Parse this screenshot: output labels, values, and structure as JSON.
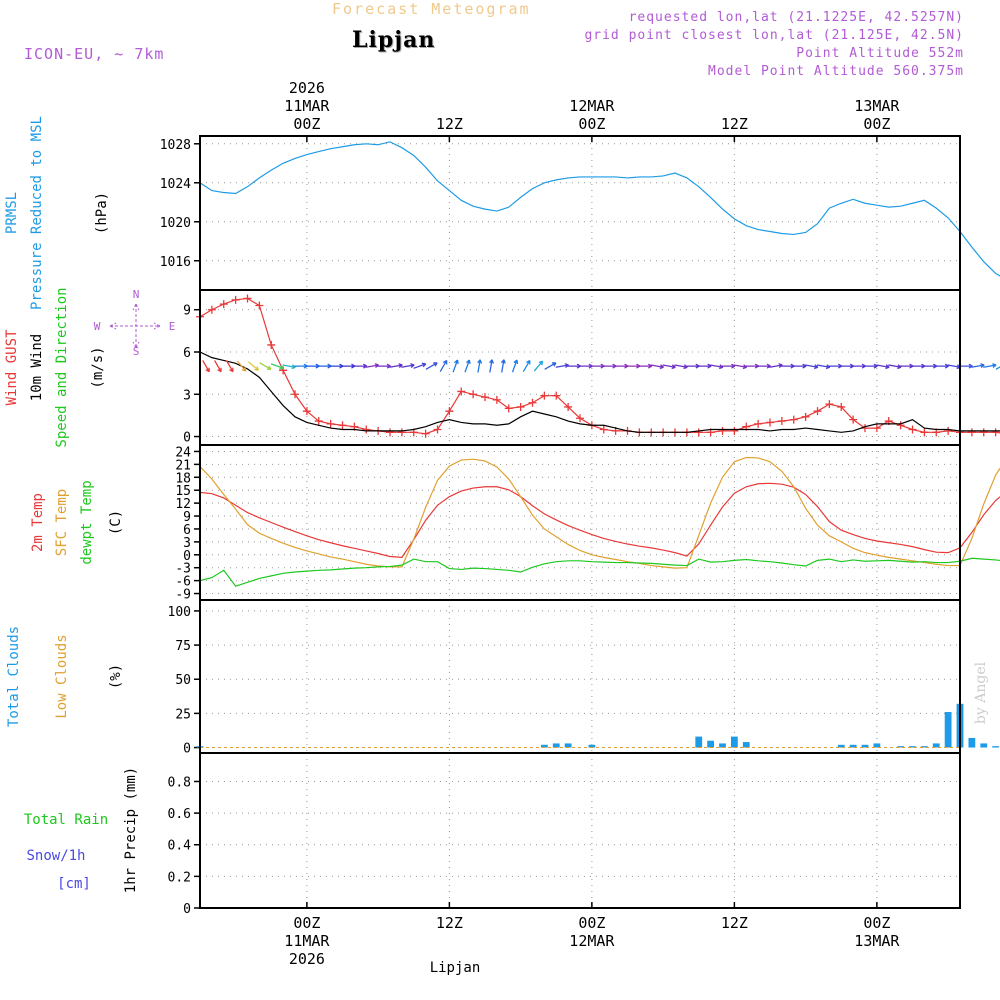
{
  "header": {
    "title": "Forecast Meteogram",
    "station": "Lipjan",
    "model": "ICON-EU, ~ 7km",
    "requested": "requested lon,lat (21.1225E, 42.5257N)",
    "grid_point": "grid point closest lon,lat (21.125E, 42.5N)",
    "point_altitude": "Point Altitude 552m",
    "model_altitude": "Model Point Altitude 560.375m"
  },
  "footer": {
    "station": "Lipjan",
    "watermark": "by Angel"
  },
  "colors": {
    "pressure": "#1e9be6",
    "gust": "#e83838",
    "wind": "#000000",
    "dir_label": "#1ec81e",
    "compass": "#b25bd6",
    "t2m": "#e83838",
    "sfc": "#e0a030",
    "dewpt": "#1ec81e",
    "clouds": "#1e9be6",
    "low_clouds": "#e0a030",
    "rain": "#1ec81e",
    "snow": "#4a4ae0",
    "grid": "#999999"
  },
  "chart_data": {
    "type": "line",
    "time_axis": {
      "hours_start": -9,
      "hours_end": 55,
      "step_hours": 1,
      "top_ticks": [
        {
          "hour": 0,
          "lines": [
            "2026",
            "11MAR",
            "00Z"
          ]
        },
        {
          "hour": 12,
          "lines": [
            "12Z"
          ]
        },
        {
          "hour": 24,
          "lines": [
            "12MAR",
            "00Z"
          ]
        },
        {
          "hour": 36,
          "lines": [
            "12Z"
          ]
        },
        {
          "hour": 48,
          "lines": [
            "13MAR",
            "00Z"
          ]
        },
        {
          "hour": 60,
          "lines": [
            "12Z"
          ]
        }
      ],
      "bottom_ticks": [
        {
          "hour": 0,
          "lines": [
            "00Z",
            "11MAR",
            "2026"
          ]
        },
        {
          "hour": 12,
          "lines": [
            "12Z"
          ]
        },
        {
          "hour": 24,
          "lines": [
            "00Z",
            "12MAR"
          ]
        },
        {
          "hour": 36,
          "lines": [
            "12Z"
          ]
        },
        {
          "hour": 48,
          "lines": [
            "00Z",
            "13MAR"
          ]
        },
        {
          "hour": 60,
          "lines": [
            "12Z"
          ]
        }
      ]
    },
    "panels": [
      {
        "id": "pressure",
        "title_lines": [
          {
            "text": "PRMSL",
            "color": "#1e9be6"
          },
          {
            "text": "Pressure Reduced to MSL",
            "color": "#1e9be6"
          }
        ],
        "unit": "(hPa)",
        "ylim": [
          1013,
          1028.8
        ],
        "yticks": [
          1016,
          1020,
          1024,
          1028
        ],
        "series": [
          {
            "name": "PRMSL",
            "color": "#1e9be6",
            "values": [
              1024.0,
              1023.2,
              1023.0,
              1022.9,
              1023.6,
              1024.5,
              1025.3,
              1026.0,
              1026.5,
              1026.9,
              1027.2,
              1027.5,
              1027.7,
              1027.9,
              1028.0,
              1027.9,
              1028.2,
              1027.6,
              1026.8,
              1025.6,
              1024.2,
              1023.2,
              1022.2,
              1021.6,
              1021.3,
              1021.1,
              1021.5,
              1022.5,
              1023.4,
              1024.0,
              1024.3,
              1024.5,
              1024.6,
              1024.6,
              1024.6,
              1024.6,
              1024.5,
              1024.6,
              1024.6,
              1024.7,
              1025.0,
              1024.5,
              1023.6,
              1022.5,
              1021.3,
              1020.3,
              1019.6,
              1019.2,
              1019.0,
              1018.8,
              1018.7,
              1018.9,
              1019.8,
              1021.4,
              1021.9,
              1022.3,
              1021.9,
              1021.7,
              1021.5,
              1021.6,
              1021.9,
              1022.2,
              1021.4,
              1020.4,
              1019.0,
              1017.4,
              1015.9,
              1014.7,
              1014.0,
              1013.7,
              1013.6,
              1014.1
            ]
          }
        ]
      },
      {
        "id": "wind",
        "title_lines": [
          {
            "text": "Wind GUST",
            "color": "#e83838"
          },
          {
            "text": "10m Wind",
            "color": "#000000"
          },
          {
            "text": "Speed and Direction",
            "color": "#1ec81e"
          }
        ],
        "unit": "(m/s)",
        "compass": {
          "n": "N",
          "s": "S",
          "w": "W",
          "e": "E"
        },
        "ylim": [
          -0.6,
          10.4
        ],
        "yticks": [
          0,
          3,
          6,
          9
        ],
        "series": [
          {
            "name": "Wind GUST",
            "color": "#e83838",
            "marker": "+",
            "values": [
              8.5,
              9.0,
              9.4,
              9.7,
              9.8,
              9.3,
              6.5,
              4.7,
              3.0,
              1.8,
              1.1,
              0.9,
              0.8,
              0.7,
              0.5,
              0.4,
              0.3,
              0.3,
              0.3,
              0.2,
              0.5,
              1.8,
              3.2,
              3.0,
              2.8,
              2.6,
              2.0,
              2.1,
              2.4,
              2.9,
              2.9,
              2.1,
              1.3,
              0.8,
              0.5,
              0.4,
              0.4,
              0.3,
              0.3,
              0.3,
              0.3,
              0.3,
              0.3,
              0.3,
              0.4,
              0.4,
              0.7,
              0.9,
              1.0,
              1.1,
              1.2,
              1.4,
              1.8,
              2.3,
              2.1,
              1.2,
              0.6,
              0.6,
              1.1,
              0.8,
              0.5,
              0.3,
              0.3,
              0.4,
              0.3,
              0.3,
              0.3,
              0.3,
              0.2,
              0.7,
              1.2,
              1.9,
              2.4,
              3.0,
              3.3,
              3.1,
              2.9,
              3.1,
              3.5,
              3.9
            ]
          },
          {
            "name": "10m Wind",
            "color": "#000000",
            "values": [
              6.0,
              5.6,
              5.4,
              5.2,
              4.8,
              4.2,
              3.2,
              2.2,
              1.4,
              1.0,
              0.8,
              0.6,
              0.5,
              0.5,
              0.4,
              0.4,
              0.4,
              0.4,
              0.5,
              0.7,
              1.0,
              1.2,
              1.0,
              0.9,
              0.9,
              0.8,
              0.9,
              1.4,
              1.8,
              1.6,
              1.4,
              1.1,
              0.9,
              0.8,
              0.8,
              0.6,
              0.4,
              0.3,
              0.3,
              0.3,
              0.3,
              0.3,
              0.4,
              0.5,
              0.5,
              0.5,
              0.5,
              0.5,
              0.4,
              0.5,
              0.5,
              0.6,
              0.5,
              0.4,
              0.3,
              0.4,
              0.7,
              0.9,
              0.9,
              0.9,
              1.2,
              0.6,
              0.5,
              0.5,
              0.4,
              0.4,
              0.4,
              0.4,
              0.4,
              0.5,
              0.6,
              0.5,
              0.8,
              1.0,
              1.2,
              1.3,
              1.4,
              1.7,
              2.2,
              1.6
            ]
          }
        ],
        "directions": {
          "from_deg": [
            330,
            330,
            330,
            320,
            310,
            300,
            290,
            280,
            270,
            270,
            270,
            270,
            270,
            270,
            260,
            270,
            260,
            260,
            250,
            240,
            210,
            200,
            200,
            190,
            190,
            190,
            200,
            210,
            220,
            240,
            260,
            270,
            270,
            270,
            270,
            270,
            270,
            270,
            280,
            280,
            280,
            270,
            270,
            280,
            270,
            280,
            270,
            270,
            260,
            270,
            270,
            280,
            280,
            270,
            270,
            270,
            270,
            280,
            280,
            270,
            270,
            270,
            270,
            280,
            270,
            260,
            260,
            240,
            230,
            220,
            210,
            220,
            220,
            230,
            230,
            240,
            240,
            220
          ],
          "colors": [
            "#e83838",
            "#e83838",
            "#e83838",
            "#e6a03a",
            "#d8c83a",
            "#9cd43a",
            "#3ac85a",
            "#20b4c8",
            "#1e7be6",
            "#1e5be6",
            "#2060e0",
            "#3040d8",
            "#4030d0",
            "#6030c8",
            "#8030c0",
            "#7030c8",
            "#6030c8",
            "#5038d0",
            "#4a40d8",
            "#3f50e0",
            "#2a6ae0",
            "#1e7be6",
            "#1e7be6",
            "#1e7be6",
            "#2a6ae0",
            "#2a6ae0",
            "#1e7be6",
            "#1e8be6",
            "#20a4e0",
            "#3060e0",
            "#4a40d8",
            "#5a34d0",
            "#6a30c8",
            "#7a30c0",
            "#8030c0",
            "#8a2cc0",
            "#9030b8",
            "#8a2cc0",
            "#7a30c0",
            "#7030c8",
            "#6a30c8",
            "#6030c8",
            "#6030c8",
            "#7030c8",
            "#7a30c0",
            "#8030c0",
            "#7a30c0",
            "#7030c8",
            "#6030c8",
            "#5a34d0",
            "#5038d0",
            "#4a40d8",
            "#4a40d8",
            "#4a40d8",
            "#5038d0",
            "#5a34d0",
            "#5038d0",
            "#5a34d0",
            "#6030c8",
            "#6030c8",
            "#5a34d0",
            "#5038d0",
            "#4a40d8",
            "#4a40d8",
            "#3f50e0",
            "#2a6ae0",
            "#1e7be6",
            "#1e8be6",
            "#20a4e0",
            "#20b4c8",
            "#3ac85a",
            "#20b4c8",
            "#1e8be6",
            "#1e7be6",
            "#2a6ae0",
            "#1e8be6"
          ]
        }
      },
      {
        "id": "temperature",
        "title_lines": [
          {
            "text": "2m Temp",
            "color": "#e83838"
          },
          {
            "text": "SFC Temp",
            "color": "#e0a030"
          },
          {
            "text": "dewpt Temp",
            "color": "#1ec81e"
          }
        ],
        "unit": "(C)",
        "ylim": [
          -10.5,
          25.5
        ],
        "yticks": [
          -9,
          -6,
          -3,
          0,
          3,
          6,
          9,
          12,
          15,
          18,
          21,
          24
        ],
        "series": [
          {
            "name": "2m Temp",
            "color": "#e83838",
            "values": [
              14.5,
              14.2,
              13.2,
              11.5,
              9.8,
              8.6,
              7.5,
              6.4,
              5.4,
              4.4,
              3.5,
              2.8,
              2.1,
              1.5,
              0.9,
              0.3,
              -0.4,
              -0.6,
              3.5,
              8.0,
              11.5,
              13.5,
              14.8,
              15.5,
              15.8,
              15.8,
              15.1,
              13.5,
              11.4,
              9.5,
              8.1,
              6.8,
              5.7,
              4.7,
              3.8,
              3.1,
              2.5,
              2.0,
              1.6,
              1.1,
              0.5,
              -0.3,
              2.5,
              6.9,
              11.1,
              14.3,
              15.8,
              16.5,
              16.6,
              16.4,
              15.7,
              14.0,
              11.2,
              7.7,
              5.7,
              4.7,
              3.8,
              3.2,
              2.8,
              2.4,
              1.9,
              1.2,
              0.6,
              0.5,
              1.6,
              5.2,
              9.3,
              12.6,
              14.9,
              16.1,
              16.6,
              16.6,
              16.2,
              15.1,
              12.2
            ]
          },
          {
            "name": "SFC Temp",
            "color": "#e0a030",
            "values": [
              20.5,
              17.6,
              14.0,
              10.6,
              7.0,
              5.0,
              3.8,
              2.7,
              1.7,
              0.9,
              0.2,
              -0.5,
              -1.0,
              -1.6,
              -2.2,
              -2.6,
              -2.8,
              -2.8,
              3.6,
              11.0,
              17.3,
              20.6,
              22.0,
              22.2,
              21.8,
              20.4,
              17.6,
              13.5,
              9.2,
              6.0,
              4.2,
              2.4,
              1.0,
              0.0,
              -0.6,
              -1.1,
              -1.6,
              -2.0,
              -2.5,
              -2.8,
              -3.1,
              -3.0,
              4.5,
              12.0,
              18.0,
              21.6,
              22.6,
              22.5,
              21.6,
              19.4,
              15.8,
              10.8,
              6.9,
              4.4,
              3.0,
              1.5,
              0.5,
              -0.1,
              -0.6,
              -1.0,
              -1.4,
              -1.8,
              -2.2,
              -2.5,
              -2.5,
              3.8,
              11.8,
              18.5,
              22.7,
              24.0,
              24.0,
              23.5,
              22.0,
              19.0,
              14.0,
              8.5
            ]
          },
          {
            "name": "dewpt Temp",
            "color": "#1ec81e",
            "values": [
              -6.0,
              -5.3,
              -3.6,
              -7.3,
              -6.4,
              -5.5,
              -4.9,
              -4.3,
              -4.0,
              -3.8,
              -3.6,
              -3.5,
              -3.3,
              -3.1,
              -3.0,
              -2.8,
              -2.7,
              -2.4,
              -1.0,
              -1.6,
              -1.6,
              -3.2,
              -3.4,
              -3.1,
              -3.2,
              -3.4,
              -3.6,
              -4.0,
              -2.9,
              -2.1,
              -1.6,
              -1.4,
              -1.4,
              -1.6,
              -1.7,
              -1.8,
              -1.8,
              -1.9,
              -2.0,
              -2.2,
              -2.4,
              -2.5,
              -1.0,
              -1.7,
              -1.6,
              -1.3,
              -1.1,
              -1.4,
              -1.6,
              -1.9,
              -2.3,
              -2.6,
              -1.3,
              -1.0,
              -1.6,
              -1.2,
              -1.5,
              -1.4,
              -1.3,
              -1.5,
              -1.7,
              -1.6,
              -1.8,
              -1.8,
              -1.5,
              -0.8,
              -1.0,
              -1.2,
              -1.5,
              -1.9,
              -2.4,
              -3.0,
              -3.6,
              -4.0,
              -4.2,
              -4.3,
              -2.6
            ]
          }
        ]
      },
      {
        "id": "clouds",
        "title_lines": [
          {
            "text": "Total Clouds",
            "color": "#1e9be6"
          },
          {
            "text": "Low Clouds",
            "color": "#e0a030"
          }
        ],
        "unit": "(%)",
        "ylim": [
          -4,
          108
        ],
        "yticks": [
          0,
          25,
          50,
          75,
          100
        ],
        "bars": [
          {
            "name": "Total Clouds",
            "color": "#1e9be6",
            "hours": [
              -9,
              20,
              21,
              22,
              24,
              33,
              34,
              35,
              36,
              37,
              45,
              46,
              47,
              48,
              50,
              51,
              52,
              53,
              54,
              55,
              56,
              57,
              58,
              60,
              62,
              63,
              64,
              65,
              66,
              67,
              68,
              69,
              70,
              71,
              72,
              73,
              74,
              75
            ],
            "values": [
              1,
              2,
              3,
              3,
              2,
              8,
              5,
              3,
              8,
              4,
              2,
              2,
              2,
              3,
              1,
              1,
              1,
              3,
              26,
              32,
              7,
              3,
              1,
              1,
              5,
              2,
              4,
              5,
              10,
              13,
              17,
              15,
              12,
              5,
              3,
              9,
              13,
              6
            ]
          }
        ]
      },
      {
        "id": "precip",
        "title_lines": [
          {
            "text": "Total  Rain",
            "color": "#1ec81e"
          },
          {
            "text": "Snow/1h",
            "color": "#4a4ae0"
          },
          {
            "text": "[cm]",
            "color": "#4a4ae0"
          }
        ],
        "unit": "1hr Precip (mm)",
        "ylim": [
          0,
          0.98
        ],
        "yticks": [
          0,
          0.2,
          0.4,
          0.6,
          0.8
        ],
        "series": []
      }
    ]
  }
}
